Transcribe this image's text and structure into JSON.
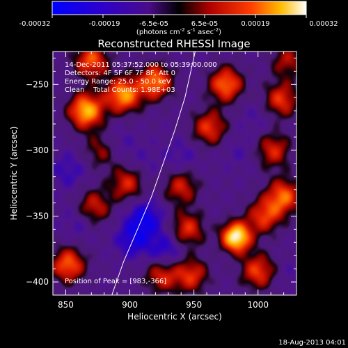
{
  "colorbar": {
    "ticks": [
      "-0.00032",
      "-0.00019",
      "-6.5e-05",
      "6.5e-05",
      "0.00019",
      "0.00032"
    ],
    "unit_label": "(photons cm",
    "unit_sup1": "-2",
    "unit_mid": " s",
    "unit_sup2": "-1",
    "unit_mid2": " asec",
    "unit_sup3": "-2",
    "unit_end": ")"
  },
  "chart_data": {
    "type": "heatmap",
    "title": "Reconstructed RHESSI Image",
    "xlabel": "Heliocentric X (arcsec)",
    "ylabel": "Heliocentric Y (arcsec)",
    "xlim": [
      840,
      1030
    ],
    "ylim": [
      -410,
      -225
    ],
    "xticks": [
      850,
      900,
      950,
      1000
    ],
    "yticks": [
      -250,
      -300,
      -350,
      -400
    ],
    "info_lines": [
      "14-Dec-2011 05:37:52.000 to 05:39:00.000",
      "Detectors: 4F 5F 6F 7F 8F, Att 0",
      "Energy Range: 25.0 - 50.0 keV",
      "Clean    Total Counts: 1.98E+03"
    ],
    "peak_label": "Position of Peak = [983,-366]",
    "peak": [
      983,
      -366
    ],
    "value_range": [
      -0.00032,
      0.00032
    ],
    "hot_spots": [
      {
        "x": 983,
        "y": -366,
        "value": 0.00032
      },
      {
        "x": 866,
        "y": -270,
        "value": 0.00024
      },
      {
        "x": 895,
        "y": -258,
        "value": 0.00021
      },
      {
        "x": 920,
        "y": -248,
        "value": 0.00018
      },
      {
        "x": 870,
        "y": -232,
        "value": 0.00015
      },
      {
        "x": 975,
        "y": -250,
        "value": 0.00017
      },
      {
        "x": 962,
        "y": -283,
        "value": 0.00012
      },
      {
        "x": 1018,
        "y": -262,
        "value": 0.00012
      },
      {
        "x": 1012,
        "y": -300,
        "value": 0.0001
      },
      {
        "x": 1020,
        "y": -335,
        "value": 0.00016
      },
      {
        "x": 1005,
        "y": -350,
        "value": 0.00012
      },
      {
        "x": 945,
        "y": -360,
        "value": 0.00011
      },
      {
        "x": 925,
        "y": -395,
        "value": 0.0001
      },
      {
        "x": 852,
        "y": -387,
        "value": 0.00016
      },
      {
        "x": 948,
        "y": -395,
        "value": 0.00011
      },
      {
        "x": 1000,
        "y": -392,
        "value": 0.00013
      },
      {
        "x": 898,
        "y": -325,
        "value": 0.0001
      },
      {
        "x": 872,
        "y": -343,
        "value": 9e-05
      },
      {
        "x": 940,
        "y": -328,
        "value": 9e-05
      },
      {
        "x": 878,
        "y": -300,
        "value": 5e-05
      },
      {
        "x": 1023,
        "y": -232,
        "value": 6e-05
      },
      {
        "x": 910,
        "y": -310,
        "value": -4e-05
      },
      {
        "x": 912,
        "y": -352,
        "value": -0.00017
      },
      {
        "x": 903,
        "y": -368,
        "value": -0.00014
      },
      {
        "x": 928,
        "y": -376,
        "value": -0.00013
      },
      {
        "x": 852,
        "y": -316,
        "value": -8e-05
      },
      {
        "x": 890,
        "y": -295,
        "value": -6e-05
      },
      {
        "x": 940,
        "y": -305,
        "value": -6e-05
      },
      {
        "x": 985,
        "y": -300,
        "value": -4e-05
      },
      {
        "x": 1000,
        "y": -275,
        "value": -4e-05
      },
      {
        "x": 860,
        "y": -355,
        "value": -6e-05
      },
      {
        "x": 1025,
        "y": -395,
        "value": -3e-05
      }
    ],
    "limb_curve": [
      [
        886,
        -410
      ],
      [
        895,
        -385
      ],
      [
        906,
        -360
      ],
      [
        917,
        -335
      ],
      [
        926,
        -310
      ],
      [
        935,
        -285
      ],
      [
        943,
        -260
      ],
      [
        951,
        -225
      ]
    ],
    "grid": false
  },
  "footer": {
    "timestamp": "18-Aug-2013 04:01"
  }
}
